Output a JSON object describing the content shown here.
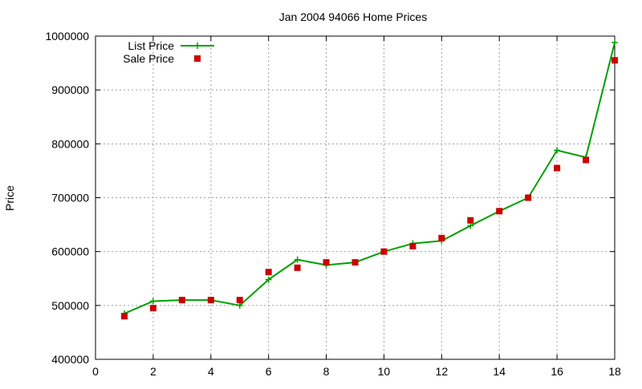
{
  "chart_data": {
    "type": "line",
    "title": "Jan 2004 94066 Home Prices",
    "xlabel": "",
    "ylabel": "Price",
    "xlim": [
      0,
      18
    ],
    "ylim": [
      400000,
      1000000
    ],
    "x_ticks": [
      0,
      2,
      4,
      6,
      8,
      10,
      12,
      14,
      16,
      18
    ],
    "y_ticks": [
      400000,
      500000,
      600000,
      700000,
      800000,
      900000,
      1000000
    ],
    "grid": true,
    "legend_position": "top-left",
    "series": [
      {
        "name": "List Price",
        "style": "line-with-plus-markers",
        "color": "#00a000",
        "x": [
          1,
          2,
          3,
          4,
          5,
          6,
          7,
          8,
          9,
          10,
          11,
          12,
          13,
          14,
          15,
          16,
          17,
          18
        ],
        "values": [
          485000,
          508000,
          510000,
          510000,
          500000,
          548000,
          585000,
          575000,
          580000,
          600000,
          615000,
          620000,
          648000,
          675000,
          700000,
          788000,
          775000,
          988000
        ]
      },
      {
        "name": "Sale Price",
        "style": "square-markers",
        "color": "#cc0000",
        "x": [
          1,
          2,
          3,
          4,
          5,
          6,
          7,
          8,
          9,
          10,
          11,
          12,
          13,
          14,
          15,
          16,
          17,
          18
        ],
        "values": [
          480000,
          495000,
          510000,
          510000,
          510000,
          562000,
          570000,
          580000,
          580000,
          600000,
          610000,
          625000,
          658000,
          675000,
          700000,
          755000,
          770000,
          955000
        ]
      }
    ]
  }
}
